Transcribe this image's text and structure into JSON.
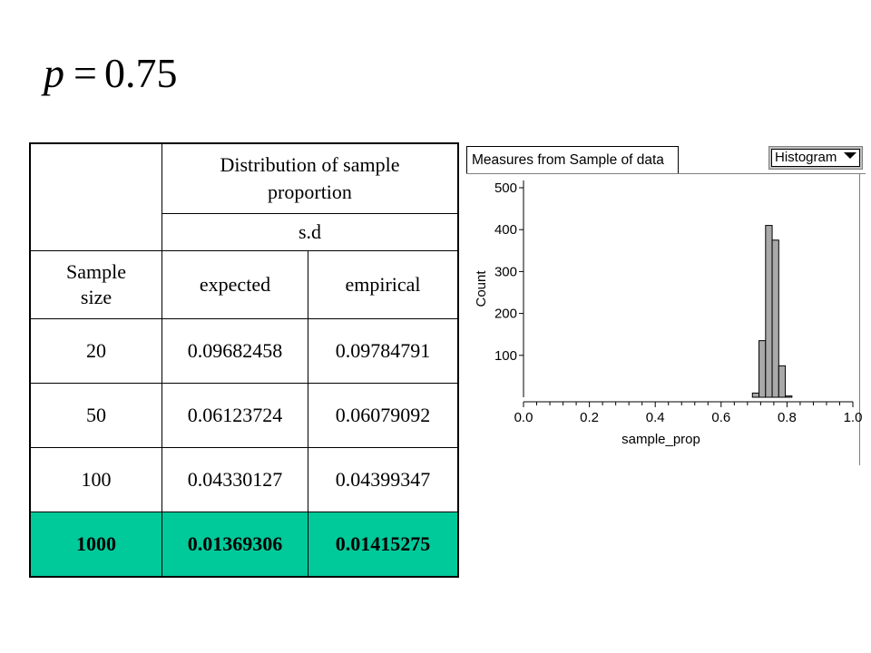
{
  "formula": {
    "variable": "p",
    "operator": "=",
    "value": "0.75"
  },
  "table": {
    "group_header": "Distribution of sample proportion",
    "sub_header": "s.d",
    "col_headers": [
      "Sample size",
      "expected",
      "empirical"
    ],
    "rows": [
      {
        "n": "20",
        "expected": "0.09682458",
        "empirical": "0.09784791"
      },
      {
        "n": "50",
        "expected": "0.06123724",
        "empirical": "0.06079092"
      },
      {
        "n": "100",
        "expected": "0.04330127",
        "empirical": "0.04399347"
      },
      {
        "n": "1000",
        "expected": "0.01369306",
        "empirical": "0.01415275"
      }
    ],
    "highlight_color": "#00c99a"
  },
  "histogram_panel": {
    "tab_label": "Measures from Sample of data",
    "dropdown_value": "Histogram"
  },
  "chart_data": {
    "type": "bar",
    "xlabel": "sample_prop",
    "ylabel": "Count",
    "xlim": [
      0.0,
      1.0
    ],
    "ylim": [
      0,
      500
    ],
    "x_ticks": [
      "0.0",
      "0.2",
      "0.4",
      "0.6",
      "0.8",
      "1.0"
    ],
    "y_ticks": [
      "100",
      "200",
      "300",
      "400",
      "500"
    ],
    "bins": [
      {
        "x0": 0.695,
        "x1": 0.715,
        "count": 10
      },
      {
        "x0": 0.715,
        "x1": 0.735,
        "count": 135
      },
      {
        "x0": 0.735,
        "x1": 0.755,
        "count": 410
      },
      {
        "x0": 0.755,
        "x1": 0.775,
        "count": 375
      },
      {
        "x0": 0.775,
        "x1": 0.795,
        "count": 75
      },
      {
        "x0": 0.795,
        "x1": 0.815,
        "count": 3
      }
    ],
    "bar_color": "#a9a9a9"
  }
}
